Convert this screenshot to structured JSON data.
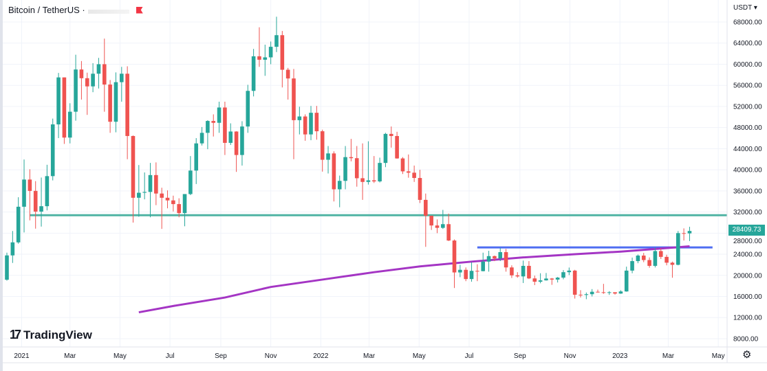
{
  "header": {
    "symbol_title": "Bitcoin / TetherUS ·",
    "flag_icon": "red-flag-icon"
  },
  "price_axis": {
    "unit": "USDT",
    "last_price": "28409.73"
  },
  "branding": {
    "logo_text": "TradingView"
  },
  "settings_icon": "gear-icon",
  "colors": {
    "up": "#26a69a",
    "down": "#ef5350",
    "moving_average": "#a435c4",
    "support_line": "#4fb3a4",
    "resistance_line": "#4e6cf2",
    "last_price_tag": "#26a69a"
  },
  "chart_data": {
    "type": "candlestick",
    "interval": "weekly",
    "title": "",
    "ylim": [
      6500,
      70500
    ],
    "y_ticks": [
      "68000.00",
      "64000.00",
      "60000.00",
      "56000.00",
      "52000.00",
      "48000.00",
      "44000.00",
      "40000.00",
      "36000.00",
      "32000.00",
      "28000.00",
      "24000.00",
      "20000.00",
      "16000.00",
      "12000.00",
      "8000.00"
    ],
    "x_ticks": [
      {
        "label": "2021",
        "date": "2021-01-01"
      },
      {
        "label": "Mar",
        "date": "2021-03-01"
      },
      {
        "label": "May",
        "date": "2021-05-01"
      },
      {
        "label": "Jul",
        "date": "2021-07-01"
      },
      {
        "label": "Sep",
        "date": "2021-09-01"
      },
      {
        "label": "Nov",
        "date": "2021-11-01"
      },
      {
        "label": "2022",
        "date": "2022-01-01"
      },
      {
        "label": "Mar",
        "date": "2022-03-01"
      },
      {
        "label": "May",
        "date": "2022-05-01"
      },
      {
        "label": "Jul",
        "date": "2022-07-01"
      },
      {
        "label": "Sep",
        "date": "2022-09-01"
      },
      {
        "label": "Nov",
        "date": "2022-11-01"
      },
      {
        "label": "2023",
        "date": "2023-01-01"
      },
      {
        "label": "Mar",
        "date": "2023-03-01"
      },
      {
        "label": "May",
        "date": "2023-05-01"
      }
    ],
    "grid": true,
    "candles_columns": [
      "date",
      "open",
      "high",
      "low",
      "close"
    ],
    "candles": [
      [
        "2020-12-14",
        19170,
        24300,
        19000,
        23780
      ],
      [
        "2020-12-21",
        23780,
        28400,
        22350,
        26250
      ],
      [
        "2020-12-28",
        26250,
        34800,
        26000,
        33000
      ],
      [
        "2021-01-04",
        33000,
        41950,
        28130,
        38150
      ],
      [
        "2021-01-11",
        38150,
        40100,
        30420,
        36000
      ],
      [
        "2021-01-18",
        36000,
        37850,
        28850,
        32080
      ],
      [
        "2021-01-25",
        32080,
        38530,
        29240,
        33100
      ],
      [
        "2021-02-01",
        33100,
        40950,
        32300,
        38800
      ],
      [
        "2021-02-08",
        38800,
        49700,
        37990,
        48600
      ],
      [
        "2021-02-15",
        48600,
        58350,
        46000,
        57500
      ],
      [
        "2021-02-22",
        57500,
        57500,
        44900,
        46100
      ],
      [
        "2021-03-01",
        46100,
        52600,
        45000,
        51000
      ],
      [
        "2021-03-08",
        51000,
        61800,
        49300,
        59000
      ],
      [
        "2021-03-15",
        59000,
        60600,
        53300,
        57350
      ],
      [
        "2021-03-22",
        57350,
        58400,
        50400,
        55800
      ],
      [
        "2021-03-29",
        55800,
        60200,
        54700,
        58200
      ],
      [
        "2021-04-05",
        58200,
        61200,
        55400,
        60000
      ],
      [
        "2021-04-12",
        60000,
        64850,
        51000,
        56150
      ],
      [
        "2021-04-19",
        56150,
        57000,
        47000,
        49100
      ],
      [
        "2021-04-26",
        49100,
        58450,
        47100,
        56600
      ],
      [
        "2021-05-03",
        56600,
        59500,
        52900,
        58200
      ],
      [
        "2021-05-10",
        58200,
        59600,
        42000,
        46400
      ],
      [
        "2021-05-17",
        46400,
        46500,
        30000,
        34700
      ],
      [
        "2021-05-24",
        34700,
        40900,
        31100,
        35650
      ],
      [
        "2021-05-31",
        35650,
        39500,
        34400,
        35800
      ],
      [
        "2021-06-07",
        35800,
        41300,
        31000,
        39000
      ],
      [
        "2021-06-14",
        39000,
        41400,
        33300,
        35500
      ],
      [
        "2021-06-21",
        35500,
        36600,
        28800,
        34700
      ],
      [
        "2021-06-28",
        34700,
        36100,
        32700,
        34200
      ],
      [
        "2021-07-05",
        34200,
        35100,
        32100,
        33500
      ],
      [
        "2021-07-12",
        33500,
        34600,
        31000,
        31800
      ],
      [
        "2021-07-19",
        31800,
        35400,
        29300,
        35400
      ],
      [
        "2021-07-26",
        35400,
        42600,
        35200,
        39850
      ],
      [
        "2021-08-02",
        39850,
        46000,
        37300,
        45000
      ],
      [
        "2021-08-09",
        45000,
        48100,
        44600,
        47000
      ],
      [
        "2021-08-16",
        47000,
        49400,
        43900,
        49250
      ],
      [
        "2021-08-23",
        49250,
        50500,
        46300,
        48900
      ],
      [
        "2021-08-30",
        48900,
        52900,
        47000,
        51800
      ],
      [
        "2021-09-06",
        51800,
        52900,
        42800,
        45100
      ],
      [
        "2021-09-13",
        45100,
        48800,
        44700,
        47250
      ],
      [
        "2021-09-20",
        47250,
        47300,
        39600,
        42800
      ],
      [
        "2021-09-27",
        42800,
        49200,
        40800,
        48200
      ],
      [
        "2021-10-04",
        48200,
        56100,
        47000,
        54950
      ],
      [
        "2021-10-11",
        54950,
        62900,
        53900,
        61500
      ],
      [
        "2021-10-18",
        61500,
        67000,
        59500,
        60850
      ],
      [
        "2021-10-25",
        60850,
        63700,
        57800,
        61300
      ],
      [
        "2021-11-01",
        61300,
        64300,
        60000,
        63300
      ],
      [
        "2021-11-08",
        63300,
        69000,
        62300,
        65500
      ],
      [
        "2021-11-15",
        65500,
        66300,
        55600,
        58950
      ],
      [
        "2021-11-22",
        58950,
        59300,
        53300,
        57300
      ],
      [
        "2021-11-29",
        57300,
        59100,
        42000,
        49400
      ],
      [
        "2021-12-06",
        49400,
        51950,
        46700,
        50100
      ],
      [
        "2021-12-13",
        50100,
        50500,
        45500,
        46700
      ],
      [
        "2021-12-20",
        46700,
        52100,
        45600,
        50800
      ],
      [
        "2021-12-27",
        50800,
        52100,
        45700,
        47300
      ],
      [
        "2022-01-03",
        47300,
        47600,
        39650,
        41900
      ],
      [
        "2022-01-10",
        41900,
        44500,
        39300,
        43100
      ],
      [
        "2022-01-17",
        43100,
        43500,
        34000,
        36300
      ],
      [
        "2022-01-24",
        36300,
        38900,
        32900,
        37900
      ],
      [
        "2022-01-31",
        37900,
        44500,
        36300,
        42400
      ],
      [
        "2022-02-07",
        42400,
        45850,
        41600,
        42200
      ],
      [
        "2022-02-14",
        42200,
        44500,
        36800,
        38400
      ],
      [
        "2022-02-21",
        38400,
        45000,
        34300,
        37700
      ],
      [
        "2022-02-28",
        37700,
        45400,
        37200,
        38000
      ],
      [
        "2022-03-07",
        38000,
        42600,
        37500,
        37800
      ],
      [
        "2022-03-14",
        37800,
        42300,
        37600,
        41300
      ],
      [
        "2022-03-21",
        41300,
        47000,
        40500,
        46800
      ],
      [
        "2022-03-28",
        46800,
        48200,
        44200,
        46400
      ],
      [
        "2022-04-04",
        46400,
        47200,
        42100,
        42150
      ],
      [
        "2022-04-11",
        42150,
        42400,
        39200,
        39700
      ],
      [
        "2022-04-18",
        39700,
        42900,
        38500,
        39450
      ],
      [
        "2022-04-25",
        39450,
        40800,
        37700,
        38450
      ],
      [
        "2022-05-02",
        38450,
        40000,
        33700,
        34300
      ],
      [
        "2022-05-09",
        34300,
        35500,
        25400,
        31300
      ],
      [
        "2022-05-16",
        31300,
        31300,
        28600,
        29450
      ],
      [
        "2022-05-23",
        29450,
        30600,
        28000,
        29000
      ],
      [
        "2022-05-30",
        29000,
        32400,
        28800,
        29700
      ],
      [
        "2022-06-06",
        29700,
        31700,
        26500,
        26600
      ],
      [
        "2022-06-13",
        26600,
        26800,
        17600,
        20550
      ],
      [
        "2022-06-20",
        20550,
        22000,
        19650,
        21050
      ],
      [
        "2022-06-27",
        21050,
        21500,
        18900,
        19300
      ],
      [
        "2022-07-04",
        19300,
        22500,
        18800,
        20850
      ],
      [
        "2022-07-11",
        20850,
        22100,
        18900,
        20800
      ],
      [
        "2022-07-18",
        20800,
        24300,
        20750,
        22600
      ],
      [
        "2022-07-25",
        22600,
        24650,
        20700,
        23650
      ],
      [
        "2022-08-01",
        23650,
        23750,
        22700,
        23200
      ],
      [
        "2022-08-08",
        23200,
        25200,
        22700,
        24400
      ],
      [
        "2022-08-15",
        24400,
        25000,
        20700,
        21500
      ],
      [
        "2022-08-22",
        21500,
        21900,
        19500,
        20000
      ],
      [
        "2022-08-29",
        20000,
        20600,
        19550,
        19800
      ],
      [
        "2022-09-05",
        19800,
        22800,
        18550,
        21800
      ],
      [
        "2022-09-12",
        21800,
        22700,
        19300,
        19420
      ],
      [
        "2022-09-19",
        19420,
        19950,
        18150,
        18800
      ],
      [
        "2022-09-26",
        18800,
        20400,
        18500,
        19050
      ],
      [
        "2022-10-03",
        19050,
        20450,
        19000,
        19400
      ],
      [
        "2022-10-10",
        19400,
        19500,
        18200,
        19200
      ],
      [
        "2022-10-17",
        19200,
        19700,
        18650,
        19570
      ],
      [
        "2022-10-24",
        19570,
        21000,
        19250,
        20600
      ],
      [
        "2022-10-31",
        20600,
        21480,
        20050,
        20900
      ],
      [
        "2022-11-07",
        20900,
        21050,
        15600,
        16330
      ],
      [
        "2022-11-14",
        16330,
        17190,
        15800,
        16280
      ],
      [
        "2022-11-21",
        16280,
        16750,
        15480,
        16430
      ],
      [
        "2022-11-28",
        16430,
        17400,
        16000,
        16890
      ],
      [
        "2022-12-05",
        16890,
        17300,
        16750,
        16800
      ],
      [
        "2022-12-12",
        16800,
        18390,
        16500,
        16750
      ],
      [
        "2022-12-19",
        16750,
        17000,
        16300,
        16800
      ],
      [
        "2022-12-26",
        16800,
        16800,
        16350,
        16550
      ],
      [
        "2023-01-02",
        16550,
        17180,
        16500,
        16950
      ],
      [
        "2023-01-09",
        16950,
        21650,
        16900,
        20900
      ],
      [
        "2023-01-16",
        20900,
        23370,
        20400,
        22700
      ],
      [
        "2023-01-23",
        22700,
        23950,
        22300,
        23750
      ],
      [
        "2023-01-30",
        23750,
        24250,
        22500,
        22900
      ],
      [
        "2023-02-06",
        22900,
        23400,
        21450,
        21800
      ],
      [
        "2023-02-13",
        21800,
        25250,
        21500,
        24600
      ],
      [
        "2023-02-20",
        24600,
        25150,
        23100,
        23500
      ],
      [
        "2023-02-27",
        23500,
        23900,
        21900,
        22400
      ],
      [
        "2023-03-06",
        22400,
        22600,
        19550,
        22000
      ],
      [
        "2023-03-13",
        22000,
        28400,
        21900,
        28000
      ],
      [
        "2023-03-20",
        28000,
        28900,
        26600,
        27950
      ],
      [
        "2023-03-27",
        27950,
        29200,
        26500,
        28409.73
      ]
    ],
    "moving_average": [
      [
        "2021-05-24",
        13000
      ],
      [
        "2021-07-05",
        14200
      ],
      [
        "2021-09-06",
        15800
      ],
      [
        "2021-11-01",
        17800
      ],
      [
        "2022-01-03",
        19200
      ],
      [
        "2022-03-07",
        20600
      ],
      [
        "2022-05-02",
        21700
      ],
      [
        "2022-07-04",
        22600
      ],
      [
        "2022-09-05",
        23400
      ],
      [
        "2022-11-07",
        24000
      ],
      [
        "2023-01-02",
        24500
      ],
      [
        "2023-03-27",
        25500
      ]
    ],
    "horizontal_lines": [
      {
        "kind": "support",
        "value": 31400,
        "from": "2021-01-11"
      },
      {
        "kind": "resistance",
        "value": 25300,
        "from": "2022-07-11",
        "to": "2023-04-24"
      }
    ]
  }
}
